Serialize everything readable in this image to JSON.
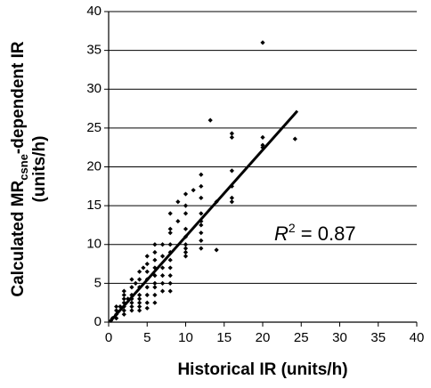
{
  "chart_data": {
    "type": "scatter",
    "x_label": "Historical IR (units/h)",
    "y_label_parts": [
      "Calculated MR",
      "csne",
      "-dependent IR"
    ],
    "y_label_line2": "(units/h)",
    "annotation": {
      "symbol": "R",
      "superscript": "2",
      "text": " = 0.87"
    },
    "color": "#000000",
    "grid": true,
    "xlim": [
      0,
      40
    ],
    "ylim": [
      0,
      40
    ],
    "xticks": [
      0,
      5,
      10,
      15,
      20,
      25,
      30,
      35,
      40
    ],
    "yticks": [
      0,
      5,
      10,
      15,
      20,
      25,
      30,
      35,
      40
    ],
    "x": [
      20,
      13.2,
      16,
      16,
      20,
      24.2,
      20,
      20,
      16,
      16,
      16,
      16,
      14,
      14,
      12,
      12,
      12,
      12,
      12,
      12,
      11,
      10,
      10,
      10,
      10,
      10,
      10,
      10,
      10,
      10,
      9,
      9,
      8,
      8,
      8,
      8,
      8,
      8,
      8,
      8,
      8,
      8,
      12,
      12,
      12,
      7,
      7,
      7,
      7,
      7,
      7,
      6,
      6,
      6,
      6,
      6,
      6,
      6,
      6,
      6,
      5,
      5,
      5,
      5,
      5,
      5,
      5,
      5,
      4.5,
      4,
      4,
      4,
      4,
      4,
      4,
      4,
      4,
      3.5,
      3,
      3,
      3,
      3,
      3,
      3,
      3,
      2.5,
      2,
      2,
      2,
      2,
      2,
      2,
      2,
      1.5,
      1,
      1,
      1,
      1,
      0.5,
      0.3
    ],
    "values": [
      36,
      26,
      24.3,
      23.8,
      23.8,
      23.6,
      22.8,
      22.5,
      19.5,
      17.5,
      16,
      15.5,
      15.5,
      9.3,
      19,
      17.5,
      16,
      14,
      13,
      12.5,
      17,
      16.5,
      15,
      14,
      12,
      11,
      10,
      9.5,
      9,
      8.5,
      15.5,
      13,
      14,
      12,
      11.5,
      10,
      9,
      8,
      7,
      6,
      5,
      4,
      10.5,
      9.5,
      11.5,
      10,
      8.5,
      7,
      6,
      5,
      4,
      10,
      9,
      8,
      7,
      6,
      5,
      4.5,
      3.5,
      2.5,
      8.5,
      7.5,
      6.5,
      5.5,
      4.5,
      3.5,
      2.5,
      1.8,
      7,
      6.5,
      5.5,
      4.5,
      3.5,
      3,
      2.5,
      2,
      1.5,
      5,
      5.5,
      4.5,
      3.5,
      3,
      2.5,
      2,
      1.5,
      3,
      4,
      3.5,
      3,
      2.5,
      2,
      1.5,
      1,
      2,
      2,
      1.5,
      1,
      0.5,
      0.5,
      0.2
    ],
    "fit": {
      "x": [
        0.3,
        24.5
      ],
      "values": [
        0.2,
        27.2
      ]
    }
  }
}
